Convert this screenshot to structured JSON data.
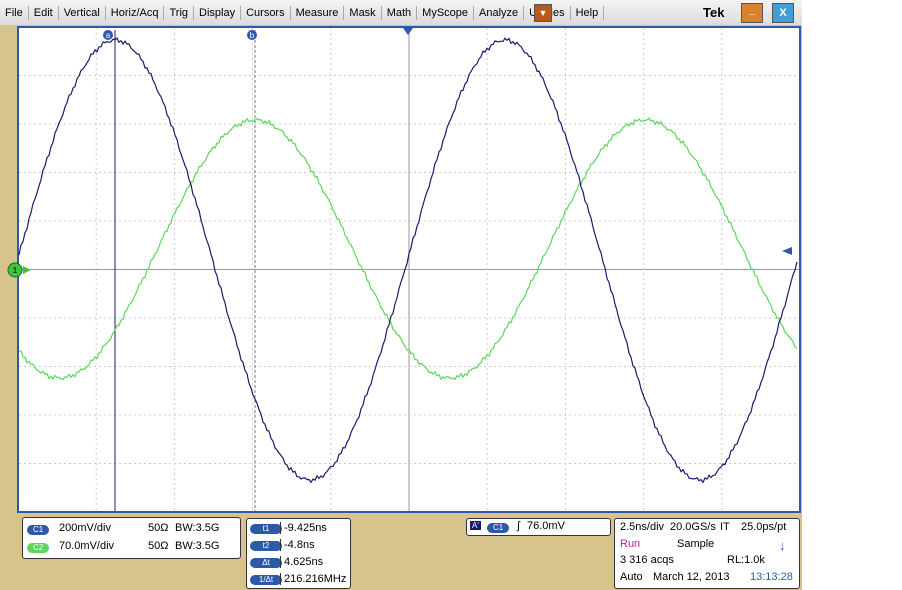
{
  "menu": {
    "items": [
      "File",
      "Edit",
      "Vertical",
      "Horiz/Acq",
      "Trig",
      "Display",
      "Cursors",
      "Measure",
      "Mask",
      "Math",
      "MyScope",
      "Analyze",
      "Utilities",
      "Help"
    ],
    "logo": "Tek"
  },
  "cursor_markers": [
    "a",
    "b"
  ],
  "ground_marker": "1",
  "channels": [
    {
      "label": "C1",
      "scale": "200mV/div",
      "impedance": "50Ω",
      "bandwidth": "BW:3.5G"
    },
    {
      "label": "C2",
      "scale": "70.0mV/div",
      "impedance": "50Ω",
      "bandwidth": "BW:3.5G"
    }
  ],
  "cursors": [
    {
      "label": "t1",
      "value": "-9.425ns"
    },
    {
      "label": "t2",
      "value": "-4.8ns"
    },
    {
      "label": "Δt",
      "value": "4.625ns"
    },
    {
      "label": "1/Δt",
      "value": "216.216MHz"
    }
  ],
  "trigger": {
    "mode": "A'",
    "source": "C1",
    "level": "76.0mV"
  },
  "acquisition": {
    "horizontal": "2.5ns/div",
    "sample_rate": "20.0GS/s",
    "it": "IT",
    "resolution": "25.0ps/pt",
    "state": "Run",
    "mode": "Sample",
    "acqs": "3 316 acqs",
    "record_length": "RL:1.0k",
    "trigger_mode": "Auto",
    "date": "March 12, 2013",
    "time": "13:13:28"
  }
}
